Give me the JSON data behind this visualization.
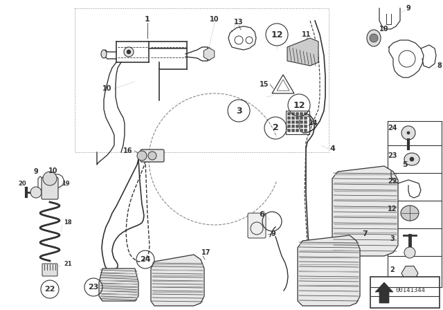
{
  "bg_color": "#ffffff",
  "part_number": "00141344",
  "gray": "#333333",
  "lgray": "#888888",
  "fig_w": 6.4,
  "fig_h": 4.48,
  "dpi": 100
}
